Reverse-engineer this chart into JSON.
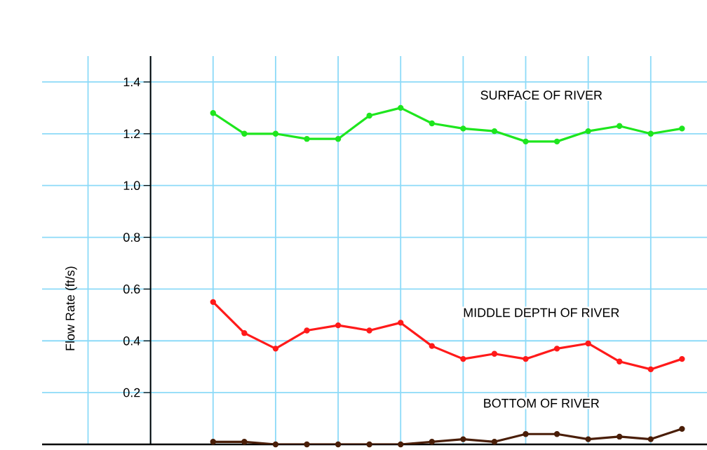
{
  "chart_data": {
    "type": "line",
    "ylabel": "Flow Rate (ft/s)",
    "categories": [
      null,
      null,
      null,
      null,
      null,
      null,
      null,
      null,
      null,
      null,
      null,
      null,
      null,
      null,
      null,
      null
    ],
    "ylim": [
      0,
      1.5
    ],
    "yticks": [
      {
        "value": 0.2,
        "label": "0.2"
      },
      {
        "value": 0.4,
        "label": "0.4"
      },
      {
        "value": 0.6,
        "label": "0.6"
      },
      {
        "value": 0.8,
        "label": "0.8"
      },
      {
        "value": 1.0,
        "label": "1.0"
      },
      {
        "value": 1.2,
        "label": "1.2"
      },
      {
        "value": 1.4,
        "label": "1.4"
      }
    ],
    "grid": true,
    "marker": "circle",
    "line_style": "solid",
    "series": [
      {
        "name": "SURFACE OF RIVER",
        "color": "#1ee61e",
        "values": [
          1.28,
          1.2,
          1.2,
          1.18,
          1.18,
          1.27,
          1.3,
          1.24,
          1.22,
          1.21,
          1.17,
          1.17,
          1.21,
          1.23,
          1.2,
          1.22
        ]
      },
      {
        "name": "MIDDLE  DEPTH OF RIVER",
        "color": "#ff1a1a",
        "values": [
          0.55,
          0.43,
          0.37,
          0.44,
          0.46,
          0.44,
          0.47,
          0.38,
          0.33,
          0.35,
          0.33,
          0.37,
          0.39,
          0.32,
          0.29,
          0.33
        ]
      },
      {
        "name": "BOTTOM OF RIVER",
        "color": "#4a1e08",
        "values": [
          0.01,
          0.01,
          0.0,
          0.0,
          0.0,
          0.0,
          0.0,
          0.01,
          0.02,
          0.01,
          0.04,
          0.04,
          0.02,
          0.03,
          0.02,
          0.06
        ]
      }
    ]
  }
}
